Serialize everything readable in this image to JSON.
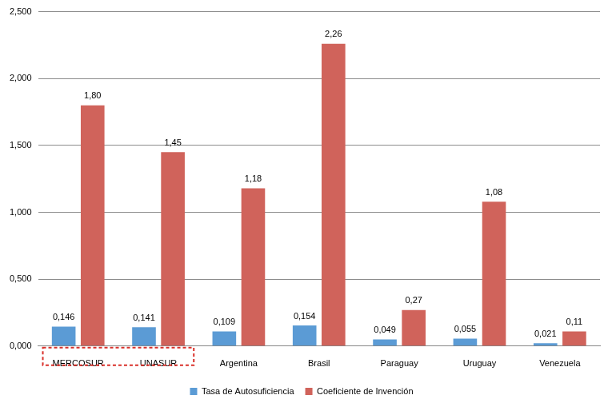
{
  "chart_data": {
    "type": "bar",
    "categories": [
      "MERCOSUR",
      "UNASUR",
      "Argentina",
      "Brasil",
      "Paraguay",
      "Uruguay",
      "Venezuela"
    ],
    "series": [
      {
        "name": "Tasa de Autosuficiencia",
        "color": "#5b9bd5",
        "values": [
          0.146,
          0.141,
          0.109,
          0.154,
          0.049,
          0.055,
          0.021
        ],
        "value_labels": [
          "0,146",
          "0,141",
          "0,109",
          "0,154",
          "0,049",
          "0,055",
          "0,021"
        ]
      },
      {
        "name": "Coeficiente de Invención",
        "color": "#d0635b",
        "values": [
          1.8,
          1.45,
          1.18,
          2.26,
          0.27,
          1.08,
          0.11
        ],
        "value_labels": [
          "1,80",
          "1,45",
          "1,18",
          "2,26",
          "0,27",
          "1,08",
          "0,11"
        ]
      }
    ],
    "ylim": [
      0,
      2.5
    ],
    "yticks": [
      {
        "value": 0,
        "label": "0,000"
      },
      {
        "value": 0.5,
        "label": "0,500"
      },
      {
        "value": 1,
        "label": "1,000"
      },
      {
        "value": 1.5,
        "label": "1,500"
      },
      {
        "value": 2,
        "label": "2,000"
      },
      {
        "value": 2.5,
        "label": "2,500"
      }
    ],
    "grid": true,
    "legend": "bottom",
    "data_labels": true
  }
}
